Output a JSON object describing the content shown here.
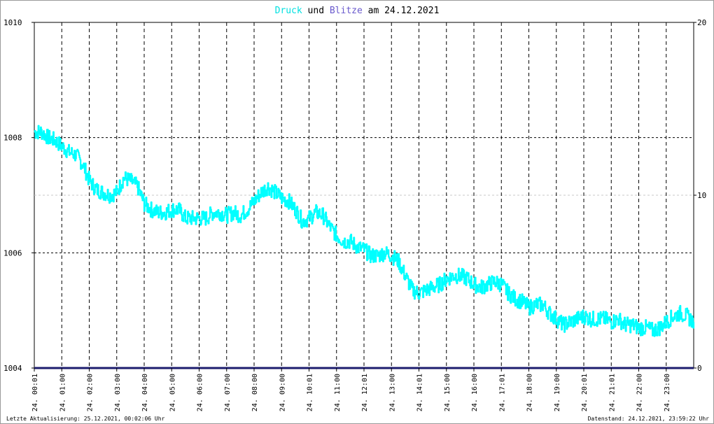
{
  "header": {
    "word_druck": "Druck",
    "word_und": "und",
    "word_blitze": "Blitze",
    "word_am": "am",
    "date": "24.12.2021"
  },
  "footer": {
    "left": "Letzte Aktualisierung: 25.12.2021, 00:02:06 Uhr",
    "right": "Datenstand: 24.12.2021, 23:59:22 Uhr"
  },
  "colors": {
    "pressure": "#00ffff",
    "lightning": "#1c1c6e",
    "title_druck": "#00e0e0",
    "title_blitze": "#6a5acd",
    "grid": "#000000",
    "grid_light": "#c8c8c8",
    "text": "#000000"
  },
  "chart_data": {
    "type": "line",
    "title": "Druck und Blitze am 24.12.2021",
    "grid": true,
    "y_left": {
      "ticks": [
        "1010",
        "1008",
        "1006",
        "1004"
      ],
      "range": [
        1004,
        1010
      ]
    },
    "y_right": {
      "ticks": [
        "20",
        "10",
        "0"
      ],
      "range": [
        0,
        20
      ]
    },
    "x": {
      "range_hours": [
        0,
        24
      ],
      "tick_labels": [
        "24. 00:01",
        "24. 01:00",
        "24. 02:00",
        "24. 03:00",
        "24. 04:00",
        "24. 05:00",
        "24. 06:00",
        "24. 07:00",
        "24. 08:00",
        "24. 09:00",
        "24. 10:01",
        "24. 11:00",
        "24. 12:01",
        "24. 13:00",
        "24. 14:01",
        "24. 15:00",
        "24. 16:00",
        "24. 17:01",
        "24. 18:00",
        "24. 19:00",
        "24. 20:01",
        "24. 21:01",
        "24. 22:00",
        "24. 23:00"
      ]
    },
    "series": [
      {
        "name": "Druck",
        "axis": "left",
        "x_hours": [
          0.0,
          0.25,
          0.5,
          0.75,
          1.0,
          1.25,
          1.5,
          1.75,
          2.0,
          2.25,
          2.5,
          2.75,
          3.0,
          3.25,
          3.5,
          3.75,
          4.0,
          4.25,
          4.5,
          4.75,
          5.0,
          5.25,
          5.5,
          5.75,
          6.0,
          6.25,
          6.5,
          6.75,
          7.0,
          7.25,
          7.5,
          7.75,
          8.0,
          8.25,
          8.5,
          8.75,
          9.0,
          9.25,
          9.5,
          9.75,
          10.0,
          10.25,
          10.5,
          10.75,
          11.0,
          11.25,
          11.5,
          11.75,
          12.0,
          12.25,
          12.5,
          12.75,
          13.0,
          13.25,
          13.5,
          13.75,
          14.0,
          14.25,
          14.5,
          14.75,
          15.0,
          15.25,
          15.5,
          15.75,
          16.0,
          16.25,
          16.5,
          16.75,
          17.0,
          17.25,
          17.5,
          17.75,
          18.0,
          18.25,
          18.5,
          18.75,
          19.0,
          19.25,
          19.5,
          19.75,
          20.0,
          20.25,
          20.5,
          20.75,
          21.0,
          21.25,
          21.5,
          21.75,
          22.0,
          22.25,
          22.5,
          22.75,
          23.0,
          23.25,
          23.5,
          23.75,
          24.0
        ],
        "values": [
          1008.1,
          1008.1,
          1008.0,
          1007.95,
          1007.85,
          1007.75,
          1007.7,
          1007.55,
          1007.25,
          1007.1,
          1007.05,
          1007.0,
          1007.05,
          1007.3,
          1007.25,
          1007.15,
          1006.85,
          1006.75,
          1006.7,
          1006.7,
          1006.75,
          1006.75,
          1006.6,
          1006.6,
          1006.6,
          1006.6,
          1006.7,
          1006.7,
          1006.65,
          1006.7,
          1006.65,
          1006.75,
          1006.9,
          1007.05,
          1007.15,
          1007.05,
          1006.95,
          1006.9,
          1006.75,
          1006.55,
          1006.6,
          1006.7,
          1006.65,
          1006.45,
          1006.3,
          1006.2,
          1006.2,
          1006.1,
          1006.05,
          1005.95,
          1005.95,
          1006.0,
          1005.95,
          1005.85,
          1005.6,
          1005.35,
          1005.3,
          1005.35,
          1005.4,
          1005.45,
          1005.55,
          1005.6,
          1005.6,
          1005.55,
          1005.45,
          1005.4,
          1005.45,
          1005.5,
          1005.45,
          1005.3,
          1005.2,
          1005.15,
          1005.05,
          1005.1,
          1005.1,
          1004.95,
          1004.85,
          1004.75,
          1004.8,
          1004.85,
          1004.9,
          1004.85,
          1004.85,
          1004.85,
          1004.8,
          1004.85,
          1004.75,
          1004.75,
          1004.7,
          1004.7,
          1004.65,
          1004.7,
          1004.8,
          1004.9,
          1004.95,
          1004.9,
          1004.8
        ]
      },
      {
        "name": "Blitze",
        "axis": "right",
        "x_hours": [
          0,
          24
        ],
        "values": [
          0,
          0
        ]
      }
    ]
  }
}
